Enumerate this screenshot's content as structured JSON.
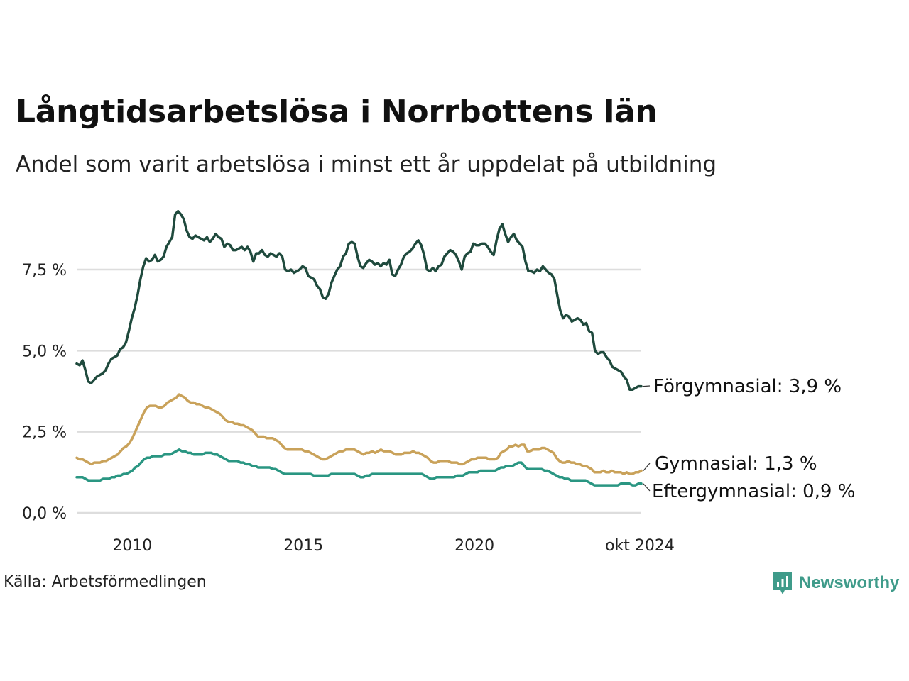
{
  "chart_data": {
    "type": "line",
    "title": "Långtidsarbetslösa i Norrbottens län",
    "subtitle": "Andel som varit arbetslösa i minst ett år uppdelat på utbildning",
    "source": "Källa: Arbetsförmedlingen",
    "brand": "Newsworthy",
    "x_start": 2008.25,
    "x_end": 2024.75,
    "xlim": [
      2008.25,
      2024.75
    ],
    "ylim": [
      0,
      9.4
    ],
    "grid": true,
    "x_ticks": [
      {
        "value": 2010,
        "label": "2010"
      },
      {
        "value": 2015,
        "label": "2015"
      },
      {
        "value": 2020,
        "label": "2020"
      },
      {
        "value": 2024.75,
        "label": "okt 2024"
      }
    ],
    "y_ticks": [
      {
        "value": 0,
        "label": "0,0 %"
      },
      {
        "value": 2.5,
        "label": "2,5 %"
      },
      {
        "value": 5,
        "label": "5,0 %"
      },
      {
        "value": 7.5,
        "label": "7,5 %"
      }
    ],
    "series": [
      {
        "name": "Förgymnasial",
        "label": "Förgymnasial: 3,9 %",
        "last_value": 3.9,
        "color": "#1f4a3d",
        "values": [
          4.6,
          4.55,
          4.7,
          4.4,
          4.05,
          4.0,
          4.1,
          4.2,
          4.25,
          4.3,
          4.4,
          4.6,
          4.75,
          4.8,
          4.85,
          5.05,
          5.1,
          5.25,
          5.6,
          6.0,
          6.3,
          6.7,
          7.2,
          7.6,
          7.85,
          7.75,
          7.8,
          7.95,
          7.75,
          7.8,
          7.9,
          8.2,
          8.35,
          8.5,
          9.2,
          9.3,
          9.2,
          9.05,
          8.7,
          8.5,
          8.45,
          8.55,
          8.5,
          8.45,
          8.4,
          8.5,
          8.35,
          8.45,
          8.6,
          8.5,
          8.45,
          8.2,
          8.3,
          8.25,
          8.1,
          8.1,
          8.15,
          8.2,
          8.1,
          8.2,
          8.05,
          7.75,
          8.0,
          8.0,
          8.1,
          7.95,
          7.9,
          8.0,
          7.95,
          7.9,
          8.0,
          7.9,
          7.5,
          7.45,
          7.5,
          7.4,
          7.45,
          7.5,
          7.6,
          7.55,
          7.3,
          7.25,
          7.2,
          7.0,
          6.9,
          6.65,
          6.6,
          6.75,
          7.1,
          7.3,
          7.5,
          7.6,
          7.9,
          8.0,
          8.3,
          8.35,
          8.3,
          7.9,
          7.6,
          7.55,
          7.7,
          7.8,
          7.75,
          7.65,
          7.7,
          7.6,
          7.7,
          7.65,
          7.8,
          7.35,
          7.3,
          7.5,
          7.65,
          7.9,
          8.0,
          8.05,
          8.15,
          8.3,
          8.4,
          8.25,
          7.95,
          7.5,
          7.45,
          7.55,
          7.45,
          7.6,
          7.65,
          7.9,
          8.0,
          8.1,
          8.05,
          7.95,
          7.75,
          7.5,
          7.9,
          8.0,
          8.05,
          8.3,
          8.25,
          8.25,
          8.3,
          8.3,
          8.2,
          8.05,
          7.95,
          8.4,
          8.75,
          8.9,
          8.6,
          8.35,
          8.5,
          8.6,
          8.4,
          8.3,
          8.2,
          7.75,
          7.45,
          7.45,
          7.4,
          7.5,
          7.45,
          7.6,
          7.5,
          7.4,
          7.35,
          7.2,
          6.7,
          6.25,
          6.0,
          6.1,
          6.05,
          5.9,
          5.95,
          6.0,
          5.95,
          5.8,
          5.85,
          5.6,
          5.55,
          5.0,
          4.9,
          4.95,
          4.95,
          4.8,
          4.7,
          4.5,
          4.45,
          4.4,
          4.35,
          4.2,
          4.1,
          3.8,
          3.8,
          3.85,
          3.9,
          3.9
        ]
      },
      {
        "name": "Gymnasial",
        "label": "Gymnasial: 1,3 %",
        "last_value": 1.3,
        "color": "#c9a25a",
        "values": [
          1.7,
          1.65,
          1.65,
          1.6,
          1.55,
          1.5,
          1.55,
          1.55,
          1.55,
          1.6,
          1.6,
          1.65,
          1.7,
          1.75,
          1.8,
          1.9,
          2.0,
          2.05,
          2.15,
          2.3,
          2.5,
          2.7,
          2.9,
          3.1,
          3.25,
          3.3,
          3.3,
          3.3,
          3.25,
          3.25,
          3.3,
          3.4,
          3.45,
          3.5,
          3.55,
          3.65,
          3.6,
          3.55,
          3.45,
          3.4,
          3.4,
          3.35,
          3.35,
          3.3,
          3.25,
          3.25,
          3.2,
          3.15,
          3.1,
          3.05,
          2.95,
          2.85,
          2.8,
          2.8,
          2.75,
          2.75,
          2.7,
          2.7,
          2.65,
          2.6,
          2.55,
          2.45,
          2.35,
          2.35,
          2.35,
          2.3,
          2.3,
          2.3,
          2.25,
          2.2,
          2.1,
          2.0,
          1.95,
          1.95,
          1.95,
          1.95,
          1.95,
          1.95,
          1.9,
          1.9,
          1.85,
          1.8,
          1.75,
          1.7,
          1.65,
          1.65,
          1.7,
          1.75,
          1.8,
          1.85,
          1.9,
          1.9,
          1.95,
          1.95,
          1.95,
          1.95,
          1.9,
          1.85,
          1.8,
          1.85,
          1.85,
          1.9,
          1.85,
          1.9,
          1.95,
          1.9,
          1.9,
          1.9,
          1.85,
          1.8,
          1.8,
          1.8,
          1.85,
          1.85,
          1.85,
          1.9,
          1.85,
          1.85,
          1.8,
          1.75,
          1.7,
          1.6,
          1.55,
          1.55,
          1.6,
          1.6,
          1.6,
          1.6,
          1.55,
          1.55,
          1.55,
          1.5,
          1.5,
          1.55,
          1.6,
          1.65,
          1.65,
          1.7,
          1.7,
          1.7,
          1.7,
          1.65,
          1.65,
          1.65,
          1.7,
          1.85,
          1.9,
          1.95,
          2.05,
          2.05,
          2.1,
          2.05,
          2.1,
          2.1,
          1.9,
          1.9,
          1.95,
          1.95,
          1.95,
          2.0,
          2.0,
          1.95,
          1.9,
          1.85,
          1.7,
          1.6,
          1.55,
          1.55,
          1.6,
          1.55,
          1.55,
          1.5,
          1.5,
          1.45,
          1.45,
          1.4,
          1.35,
          1.25,
          1.25,
          1.25,
          1.3,
          1.25,
          1.25,
          1.3,
          1.25,
          1.25,
          1.25,
          1.2,
          1.25,
          1.2,
          1.2,
          1.25,
          1.25,
          1.3
        ]
      },
      {
        "name": "Eftergymnasial",
        "label": "Eftergymnasial: 0,9 %",
        "last_value": 0.9,
        "color": "#2a9682",
        "values": [
          1.1,
          1.1,
          1.1,
          1.05,
          1.0,
          1.0,
          1.0,
          1.0,
          1.0,
          1.05,
          1.05,
          1.05,
          1.1,
          1.1,
          1.15,
          1.15,
          1.2,
          1.2,
          1.25,
          1.3,
          1.4,
          1.45,
          1.55,
          1.65,
          1.7,
          1.7,
          1.75,
          1.75,
          1.75,
          1.75,
          1.8,
          1.8,
          1.8,
          1.85,
          1.9,
          1.95,
          1.9,
          1.9,
          1.85,
          1.85,
          1.8,
          1.8,
          1.8,
          1.8,
          1.85,
          1.85,
          1.85,
          1.8,
          1.8,
          1.75,
          1.7,
          1.65,
          1.6,
          1.6,
          1.6,
          1.6,
          1.55,
          1.55,
          1.5,
          1.5,
          1.45,
          1.45,
          1.4,
          1.4,
          1.4,
          1.4,
          1.4,
          1.35,
          1.35,
          1.3,
          1.25,
          1.2,
          1.2,
          1.2,
          1.2,
          1.2,
          1.2,
          1.2,
          1.2,
          1.2,
          1.2,
          1.15,
          1.15,
          1.15,
          1.15,
          1.15,
          1.15,
          1.2,
          1.2,
          1.2,
          1.2,
          1.2,
          1.2,
          1.2,
          1.2,
          1.2,
          1.15,
          1.1,
          1.1,
          1.15,
          1.15,
          1.2,
          1.2,
          1.2,
          1.2,
          1.2,
          1.2,
          1.2,
          1.2,
          1.2,
          1.2,
          1.2,
          1.2,
          1.2,
          1.2,
          1.2,
          1.2,
          1.2,
          1.2,
          1.15,
          1.1,
          1.05,
          1.05,
          1.1,
          1.1,
          1.1,
          1.1,
          1.1,
          1.1,
          1.1,
          1.15,
          1.15,
          1.15,
          1.2,
          1.25,
          1.25,
          1.25,
          1.25,
          1.3,
          1.3,
          1.3,
          1.3,
          1.3,
          1.3,
          1.35,
          1.4,
          1.4,
          1.45,
          1.45,
          1.45,
          1.5,
          1.55,
          1.55,
          1.45,
          1.35,
          1.35,
          1.35,
          1.35,
          1.35,
          1.35,
          1.3,
          1.3,
          1.25,
          1.2,
          1.15,
          1.1,
          1.1,
          1.05,
          1.05,
          1.0,
          1.0,
          1.0,
          1.0,
          1.0,
          1.0,
          0.95,
          0.9,
          0.85,
          0.85,
          0.85,
          0.85,
          0.85,
          0.85,
          0.85,
          0.85,
          0.85,
          0.9,
          0.9,
          0.9,
          0.9,
          0.85,
          0.85,
          0.9,
          0.9
        ]
      }
    ]
  }
}
